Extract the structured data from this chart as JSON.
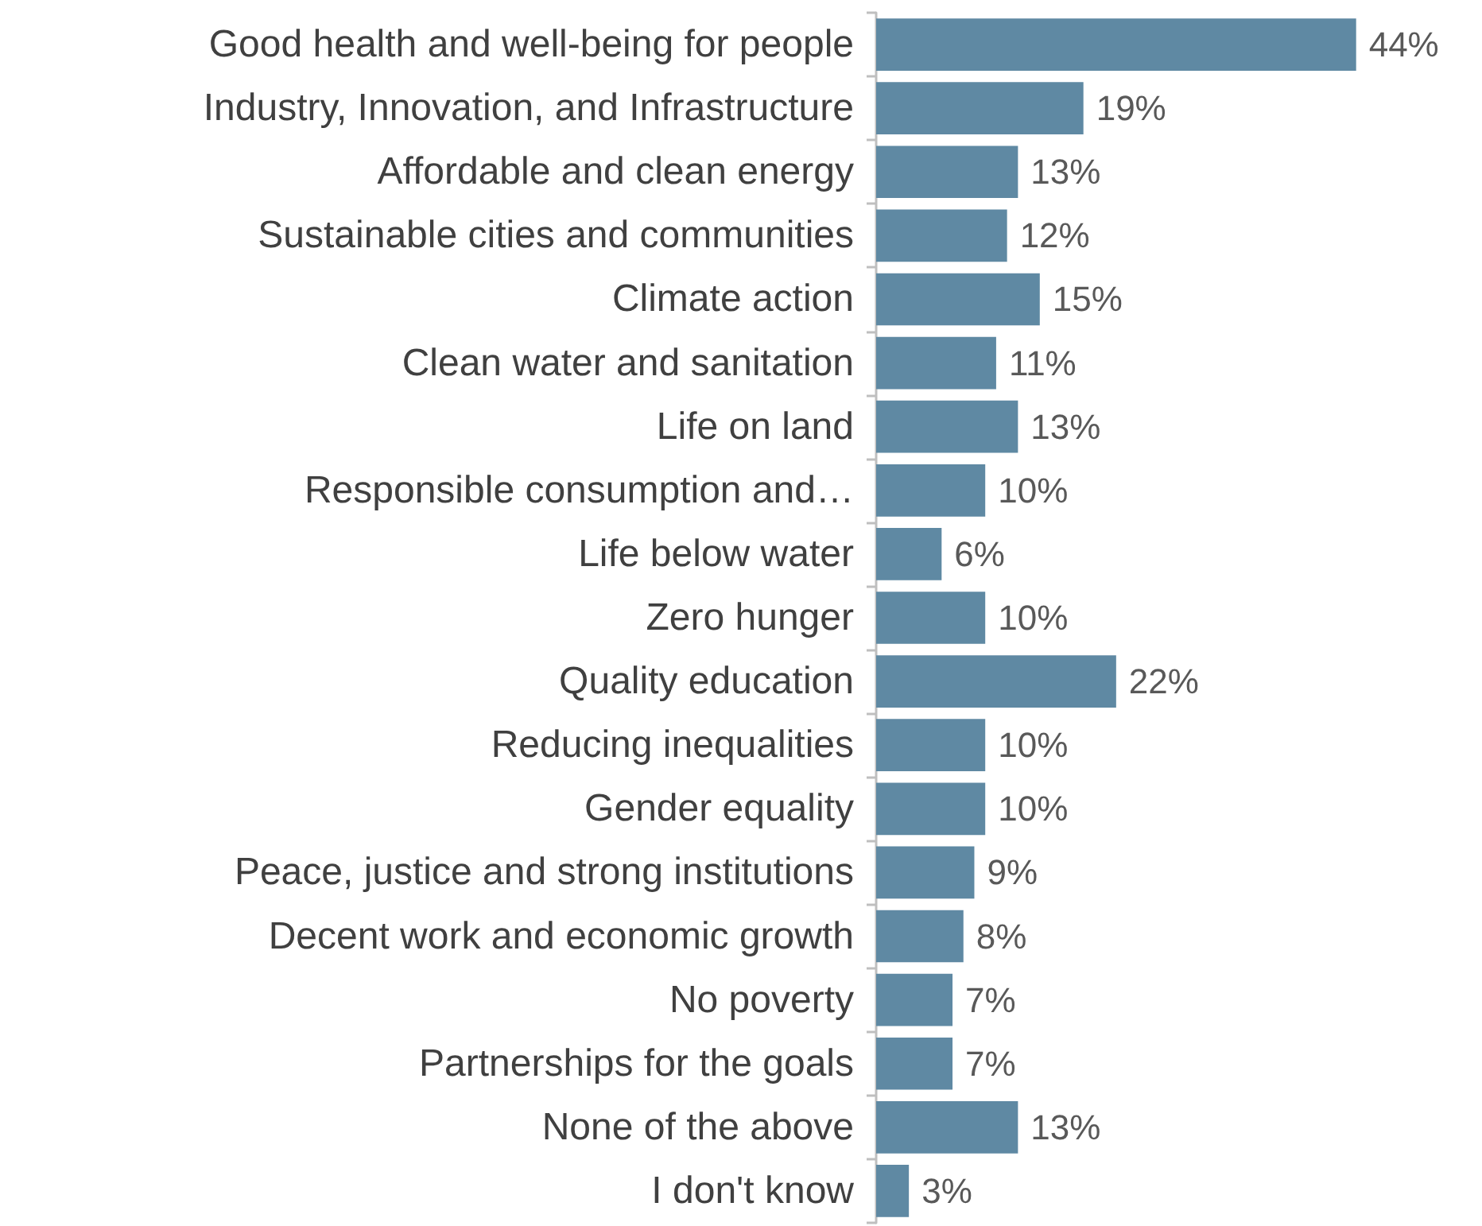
{
  "chart_data": {
    "type": "bar",
    "orientation": "horizontal",
    "tick_labels": "y",
    "categories": [
      "Good health and well-being for people",
      "Industry, Innovation, and Infrastructure",
      "Affordable and clean energy",
      "Sustainable cities and communities",
      "Climate action",
      "Clean water and sanitation",
      "Life on land",
      "Responsible consumption and…",
      "Life below water",
      "Zero hunger",
      "Quality education",
      "Reducing inequalities",
      "Gender equality",
      "Peace, justice and strong institutions",
      "Decent work and economic growth",
      "No poverty",
      "Partnerships for the goals",
      "None of the above",
      "I don't know"
    ],
    "values": [
      44,
      19,
      13,
      12,
      15,
      11,
      13,
      10,
      6,
      10,
      22,
      10,
      10,
      9,
      8,
      7,
      7,
      13,
      3
    ],
    "value_labels": [
      "44%",
      "19%",
      "13%",
      "12%",
      "15%",
      "11%",
      "13%",
      "10%",
      "6%",
      "10%",
      "22%",
      "10%",
      "10%",
      "9%",
      "8%",
      "7%",
      "7%",
      "13%",
      "3%"
    ],
    "color": "#5f89a3"
  }
}
